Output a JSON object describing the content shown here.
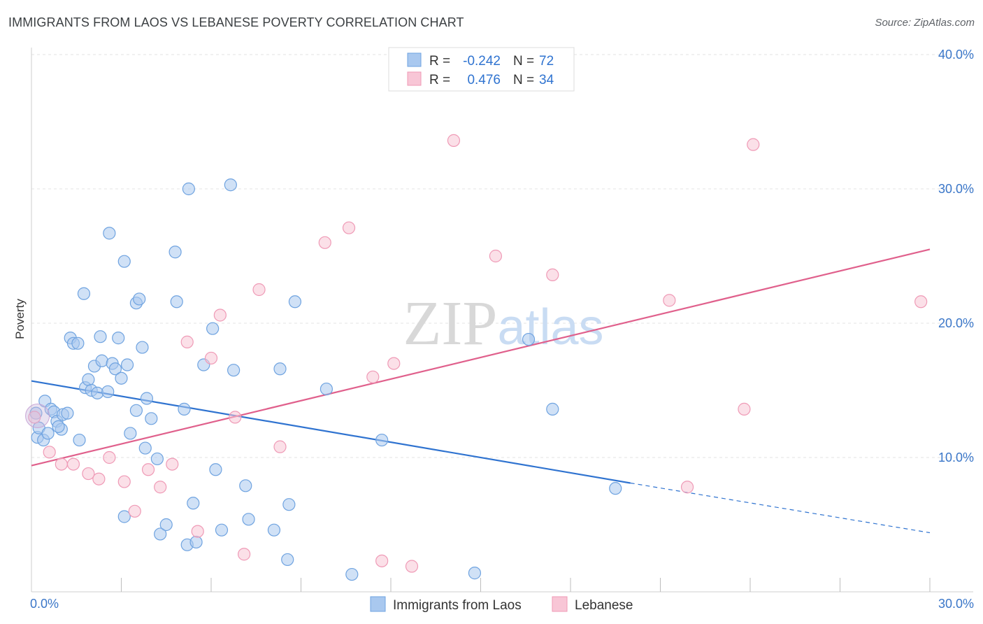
{
  "header": {
    "title": "IMMIGRANTS FROM LAOS VS LEBANESE POVERTY CORRELATION CHART",
    "source": "Source: ZipAtlas.com"
  },
  "chart_data": {
    "type": "scatter",
    "title": "IMMIGRANTS FROM LAOS VS LEBANESE POVERTY CORRELATION CHART",
    "ylabel": "Poverty",
    "xlabel": "",
    "xlim": [
      0,
      30
    ],
    "ylim": [
      0,
      40
    ],
    "x_tick_labels": [
      "0.0%",
      "30.0%"
    ],
    "y_tick_labels": [
      "10.0%",
      "20.0%",
      "30.0%",
      "40.0%"
    ],
    "y_ticks": [
      10,
      20,
      30,
      40
    ],
    "grid": true,
    "watermark": "ZIPatlas",
    "legend_position": "top-center",
    "stats": [
      {
        "r_label": "R =",
        "r": "-0.242",
        "n_label": "N =",
        "n": "72"
      },
      {
        "r_label": "R =",
        "r": "0.476",
        "n_label": "N =",
        "n": "34"
      }
    ],
    "series": [
      {
        "name": "Immigrants from Laos",
        "color": "#6fa3e0",
        "fill": "#a9c8ef",
        "line_color": "#2f73d0",
        "trend": {
          "x0": 0,
          "y0": 15.7,
          "x1": 20,
          "y1": 8.1,
          "dash_to_x": 30,
          "dash_to_y": 4.4
        },
        "points": [
          [
            0.15,
            13.3
          ],
          [
            0.2,
            11.5
          ],
          [
            0.25,
            12.2
          ],
          [
            0.4,
            11.3
          ],
          [
            0.45,
            14.2
          ],
          [
            0.55,
            11.8
          ],
          [
            0.65,
            13.6
          ],
          [
            0.75,
            13.4
          ],
          [
            0.85,
            12.7
          ],
          [
            1.0,
            12.1
          ],
          [
            1.05,
            13.2
          ],
          [
            1.2,
            13.3
          ],
          [
            0.9,
            12.3
          ],
          [
            1.3,
            18.9
          ],
          [
            1.4,
            18.5
          ],
          [
            1.55,
            18.5
          ],
          [
            1.6,
            11.3
          ],
          [
            1.75,
            22.2
          ],
          [
            1.8,
            15.2
          ],
          [
            1.9,
            15.8
          ],
          [
            2.0,
            15.0
          ],
          [
            2.1,
            16.8
          ],
          [
            2.2,
            14.8
          ],
          [
            2.3,
            19.0
          ],
          [
            2.35,
            17.2
          ],
          [
            2.55,
            14.9
          ],
          [
            2.6,
            26.7
          ],
          [
            2.7,
            17.0
          ],
          [
            2.8,
            16.6
          ],
          [
            2.9,
            18.9
          ],
          [
            3.0,
            15.9
          ],
          [
            3.1,
            24.6
          ],
          [
            3.2,
            16.9
          ],
          [
            3.3,
            11.8
          ],
          [
            3.5,
            13.5
          ],
          [
            3.5,
            21.5
          ],
          [
            3.6,
            21.8
          ],
          [
            3.7,
            18.2
          ],
          [
            3.8,
            10.7
          ],
          [
            3.85,
            14.4
          ],
          [
            4.0,
            12.9
          ],
          [
            4.2,
            9.9
          ],
          [
            4.3,
            4.3
          ],
          [
            4.5,
            5.0
          ],
          [
            4.8,
            25.3
          ],
          [
            4.85,
            21.6
          ],
          [
            5.1,
            13.6
          ],
          [
            5.2,
            3.5
          ],
          [
            5.25,
            30.0
          ],
          [
            5.4,
            6.6
          ],
          [
            5.5,
            3.7
          ],
          [
            5.75,
            16.9
          ],
          [
            6.05,
            19.6
          ],
          [
            6.15,
            9.1
          ],
          [
            6.35,
            4.6
          ],
          [
            6.65,
            30.3
          ],
          [
            6.75,
            16.5
          ],
          [
            7.15,
            7.9
          ],
          [
            7.25,
            5.4
          ],
          [
            8.1,
            4.6
          ],
          [
            8.3,
            16.6
          ],
          [
            8.55,
            2.4
          ],
          [
            8.6,
            6.5
          ],
          [
            8.8,
            21.6
          ],
          [
            9.85,
            15.1
          ],
          [
            10.7,
            1.3
          ],
          [
            11.7,
            11.3
          ],
          [
            14.8,
            1.4
          ],
          [
            16.6,
            18.8
          ],
          [
            17.4,
            13.6
          ],
          [
            19.5,
            7.7
          ],
          [
            3.1,
            5.6
          ]
        ]
      },
      {
        "name": "Lebanese",
        "color": "#ef9ab6",
        "fill": "#f8c6d6",
        "line_color": "#e0608c",
        "trend": {
          "x0": 0,
          "y0": 9.4,
          "x1": 30,
          "y1": 25.5
        },
        "points": [
          [
            0.1,
            13.0
          ],
          [
            0.6,
            10.4
          ],
          [
            1.0,
            9.5
          ],
          [
            1.4,
            9.5
          ],
          [
            1.9,
            8.8
          ],
          [
            2.25,
            8.4
          ],
          [
            2.6,
            10.0
          ],
          [
            3.1,
            8.2
          ],
          [
            3.45,
            6.0
          ],
          [
            3.9,
            9.1
          ],
          [
            4.3,
            7.8
          ],
          [
            4.7,
            9.5
          ],
          [
            5.2,
            18.6
          ],
          [
            5.55,
            4.5
          ],
          [
            6.0,
            17.4
          ],
          [
            6.3,
            20.6
          ],
          [
            6.8,
            13.0
          ],
          [
            7.1,
            2.8
          ],
          [
            7.6,
            22.5
          ],
          [
            8.3,
            10.8
          ],
          [
            9.8,
            26.0
          ],
          [
            10.6,
            27.1
          ],
          [
            11.4,
            16.0
          ],
          [
            11.7,
            2.3
          ],
          [
            12.1,
            17.0
          ],
          [
            12.7,
            1.9
          ],
          [
            14.1,
            33.6
          ],
          [
            15.5,
            25.0
          ],
          [
            17.4,
            23.6
          ],
          [
            21.3,
            21.7
          ],
          [
            21.9,
            7.8
          ],
          [
            23.8,
            13.6
          ],
          [
            24.1,
            33.3
          ],
          [
            29.7,
            21.6
          ]
        ]
      }
    ],
    "bottom_legend": [
      "Immigrants from Laos",
      "Lebanese"
    ]
  }
}
